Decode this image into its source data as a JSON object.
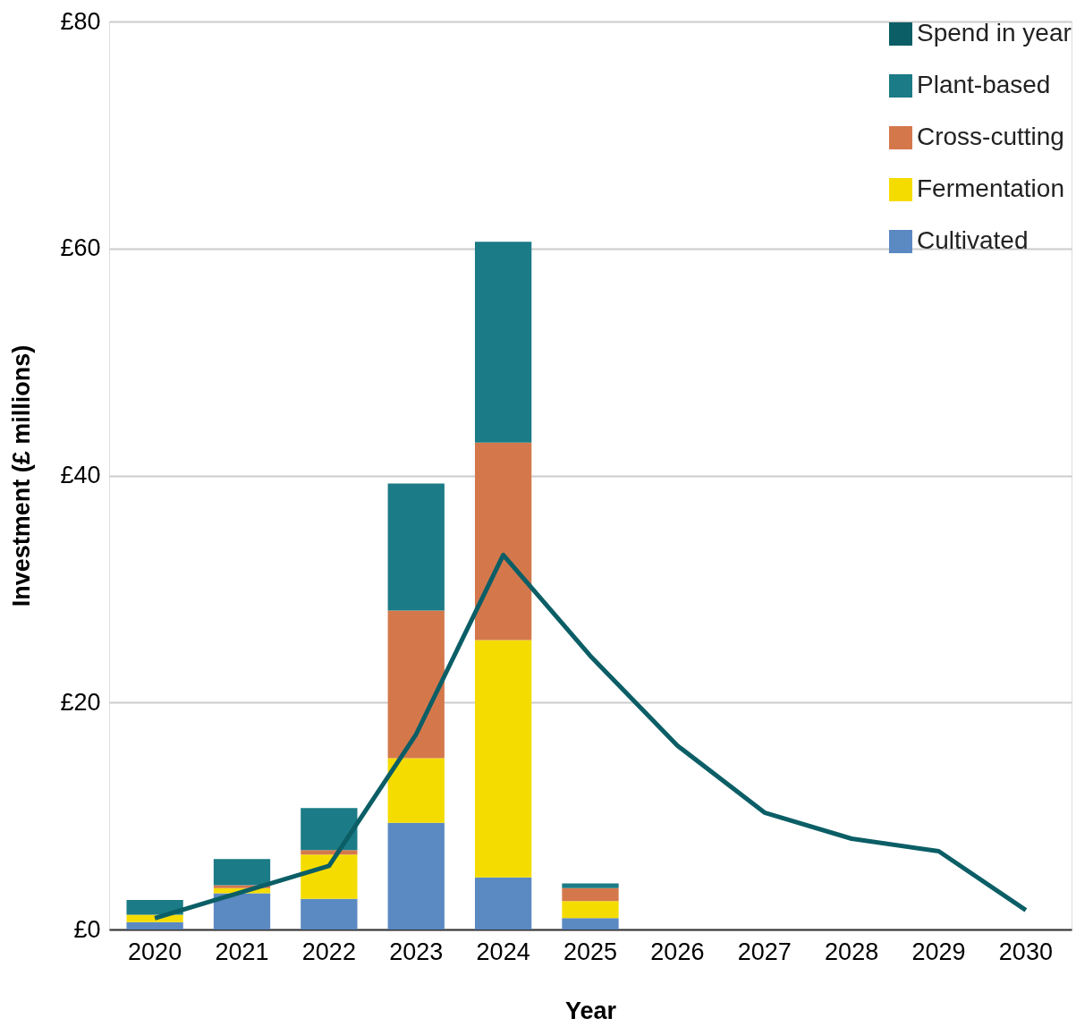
{
  "chart_data": {
    "type": "bar",
    "stacked": true,
    "xlabel": "Year",
    "ylabel": "Investment (£ millions)",
    "categories": [
      "2020",
      "2021",
      "2022",
      "2023",
      "2024",
      "2025",
      "2026",
      "2027",
      "2028",
      "2029",
      "2030"
    ],
    "series": [
      {
        "name": "Cultivated",
        "color": "#5b89c2",
        "values": [
          0.65,
          3.2,
          2.7,
          9.4,
          4.6,
          1.0,
          null,
          null,
          null,
          null,
          null
        ]
      },
      {
        "name": "Fermentation",
        "color": "#f5dc00",
        "values": [
          0.65,
          0.45,
          3.9,
          5.7,
          20.9,
          1.5,
          null,
          null,
          null,
          null,
          null
        ]
      },
      {
        "name": "Cross-cutting",
        "color": "#d4784c",
        "values": [
          0,
          0.25,
          0.4,
          13.0,
          17.4,
          1.15,
          null,
          null,
          null,
          null,
          null
        ]
      },
      {
        "name": "Plant-based",
        "color": "#1b7b86",
        "values": [
          1.3,
          2.3,
          3.7,
          11.2,
          17.7,
          0.4,
          null,
          null,
          null,
          null,
          null
        ]
      },
      {
        "name": "Spend in year",
        "type": "line",
        "color": "#0b5e66",
        "values": [
          1.0,
          3.3,
          5.6,
          17.2,
          33.0,
          24.1,
          16.2,
          10.3,
          8.0,
          6.9,
          1.7
        ]
      }
    ],
    "ylim": [
      0,
      80
    ],
    "yticks": [
      {
        "value": 0,
        "label": "£0"
      },
      {
        "value": 20,
        "label": "£20"
      },
      {
        "value": 40,
        "label": "£40"
      },
      {
        "value": 60,
        "label": "£60"
      },
      {
        "value": 80,
        "label": "£80"
      }
    ],
    "grid": "y",
    "legend": "top right"
  }
}
